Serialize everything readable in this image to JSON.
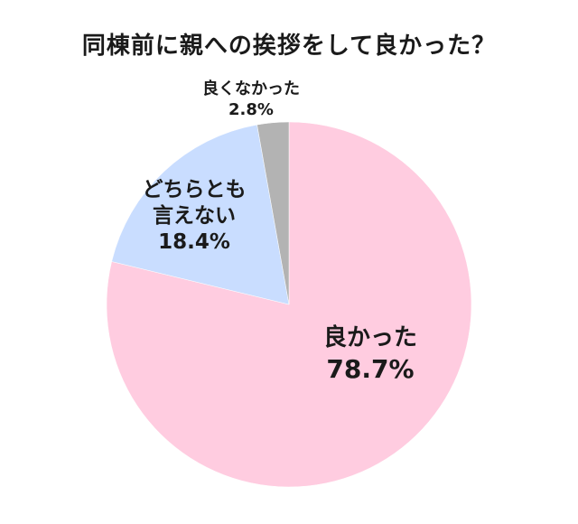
{
  "chart_data": {
    "type": "pie",
    "title": "同棟前に親への挨拶をして良かった？",
    "start_angle_deg": 0,
    "direction": "clockwise",
    "slices": [
      {
        "label": "良かった",
        "label_lines": [
          "良かった"
        ],
        "value": 78.7,
        "value_label": "78.7%",
        "color": "#ffcce0"
      },
      {
        "label": "どちらとも言えない",
        "label_lines": [
          "どちらとも",
          "言えない"
        ],
        "value": 18.4,
        "value_label": "18.4%",
        "color": "#c9ddff"
      },
      {
        "label": "良くなかった",
        "label_lines": [
          "良くなかった"
        ],
        "value": 2.8,
        "value_label": "2.8%",
        "color": "#b3b3b3"
      }
    ]
  }
}
